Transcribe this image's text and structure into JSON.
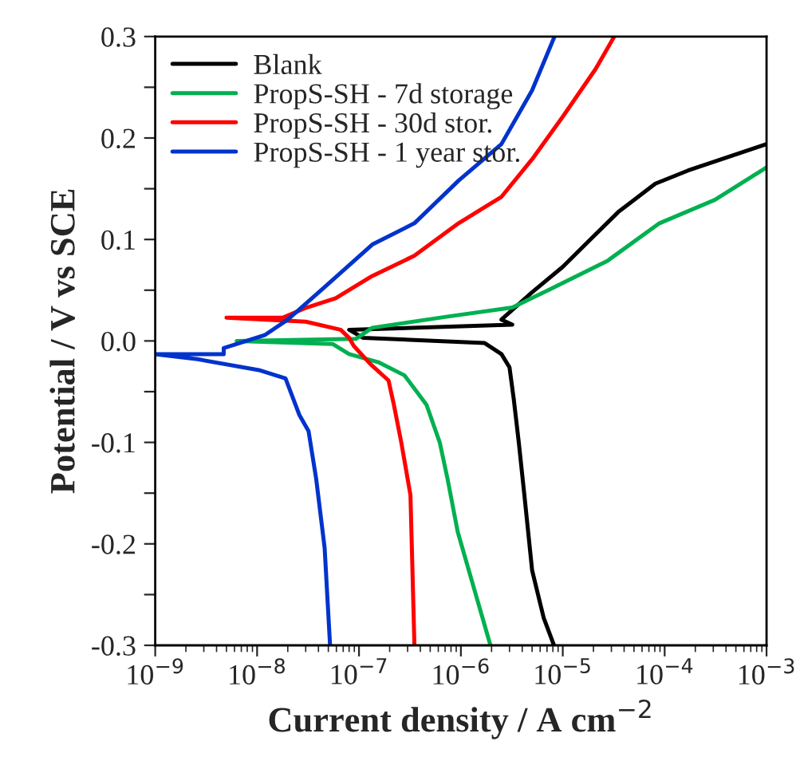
{
  "chart_data": {
    "type": "line",
    "xlabel": "Current density / A cm$^{−2}$",
    "ylabel": "Potential / V vs SCE",
    "log": "x",
    "xlim": [
      1e-09,
      0.001
    ],
    "ylim": [
      -0.3,
      0.3
    ],
    "xticks": [
      {
        "value": 1e-09,
        "label": "10$^{−9}$"
      },
      {
        "value": 1e-08,
        "label": "10$^{−8}$"
      },
      {
        "value": 1e-07,
        "label": "10$^{−7}$"
      },
      {
        "value": 1e-06,
        "label": "10$^{−6}$"
      },
      {
        "value": 1e-05,
        "label": "10$^{−5}$"
      },
      {
        "value": 0.0001,
        "label": "10$^{−4}$"
      },
      {
        "value": 0.001,
        "label": "10$^{−3}$"
      }
    ],
    "yticks": [
      {
        "value": -0.3,
        "label": "-0.3"
      },
      {
        "value": -0.25,
        "label": null
      },
      {
        "value": -0.2,
        "label": "-0.2"
      },
      {
        "value": -0.15,
        "label": null
      },
      {
        "value": -0.1,
        "label": "-0.1"
      },
      {
        "value": -0.05,
        "label": null
      },
      {
        "value": 0,
        "label": "0.0"
      },
      {
        "value": 0.05,
        "label": null
      },
      0.1,
      {
        "value": 0.15,
        "label": null
      },
      0.2,
      {
        "value": 0.25,
        "label": null
      },
      0.3
    ],
    "grid": false,
    "legend": "top left",
    "marker": "none",
    "line_style": "solid",
    "series": [
      {
        "name": "Blank",
        "color": "#000000",
        "x": [
          8.2e-06,
          6.5e-06,
          5e-06,
          4.2e-06,
          3.7e-06,
          3.3e-06,
          3e-06,
          2.5e-06,
          1.7e-06,
          1.1e-07,
          8e-08,
          3.2e-06,
          2.5e-06,
          5e-06,
          1e-05,
          2.1e-05,
          3.5e-05,
          8.1e-05,
          0.00017,
          0.001
        ],
        "values": [
          -0.3,
          -0.273,
          -0.226,
          -0.152,
          -0.1,
          -0.057,
          -0.026,
          -0.013,
          -0.002,
          0.003,
          0.011,
          0.016,
          0.021,
          0.048,
          0.073,
          0.105,
          0.127,
          0.155,
          0.168,
          0.194
        ]
      },
      {
        "name": "PropS-SH - 7d storage",
        "color": "#00b050",
        "x": [
          1.95e-06,
          9.3e-07,
          7.4e-07,
          6.2e-07,
          4.6e-07,
          2.8e-07,
          1.55e-07,
          8e-08,
          5.5e-08,
          6.3e-09,
          9.3e-08,
          1.35e-07,
          7.4e-07,
          3.2e-06,
          7.2e-06,
          2.75e-05,
          8.9e-05,
          0.00031,
          0.001
        ],
        "values": [
          -0.3,
          -0.188,
          -0.136,
          -0.1,
          -0.063,
          -0.034,
          -0.021,
          -0.013,
          -0.003,
          0.0,
          0.002,
          0.013,
          0.024,
          0.033,
          0.05,
          0.079,
          0.116,
          0.139,
          0.171
        ]
      },
      {
        "name": "PropS-SH - 30d stor.",
        "color": "#ff0000",
        "x": [
          3.5e-07,
          3.2e-07,
          2.6e-07,
          2.2e-07,
          1.95e-07,
          1.3e-07,
          8.9e-08,
          8e-08,
          6.6e-08,
          3e-08,
          5e-09,
          1.8e-08,
          2.9e-08,
          5.9e-08,
          1.35e-07,
          3.5e-07,
          9.5e-07,
          2.5e-06,
          5e-06,
          1e-05,
          2.1e-05,
          3.2e-05
        ],
        "values": [
          -0.3,
          -0.152,
          -0.1,
          -0.063,
          -0.039,
          -0.023,
          -0.005,
          0.003,
          0.011,
          0.019,
          0.023,
          0.023,
          0.032,
          0.042,
          0.064,
          0.084,
          0.116,
          0.142,
          0.179,
          0.221,
          0.268,
          0.3
        ]
      },
      {
        "name": "PropS-SH - 1 year stor.",
        "color": "#0033cc",
        "x": [
          5.2e-08,
          4.6e-08,
          3.8e-08,
          3.2e-08,
          2.6e-08,
          1.9e-08,
          1.07e-08,
          2.6e-09,
          1e-09,
          4.7e-09,
          4.7e-09,
          6.8e-09,
          1.2e-08,
          2e-08,
          4.6e-08,
          1.35e-07,
          3.5e-07,
          9.5e-07,
          2.5e-06,
          5e-06,
          8.3e-06
        ],
        "values": [
          -0.3,
          -0.204,
          -0.136,
          -0.089,
          -0.073,
          -0.037,
          -0.029,
          -0.018,
          -0.013,
          -0.013,
          -0.007,
          -0.002,
          0.006,
          0.021,
          0.053,
          0.095,
          0.116,
          0.158,
          0.194,
          0.247,
          0.3
        ]
      }
    ]
  }
}
